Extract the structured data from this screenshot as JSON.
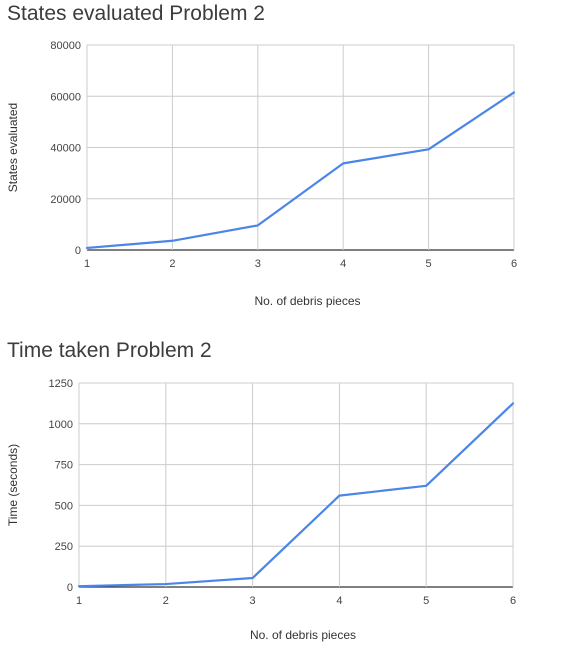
{
  "chart_data": [
    {
      "type": "line",
      "title": "States evaluated Problem 2",
      "xlabel": "No. of debris pieces",
      "ylabel": "States evaluated",
      "x": [
        1,
        2,
        3,
        4,
        5,
        6
      ],
      "x_ticks": [
        "1",
        "2",
        "3",
        "4",
        "5",
        "6"
      ],
      "y_ticks": [
        "0",
        "20000",
        "40000",
        "60000",
        "80000"
      ],
      "ylim": [
        0,
        80000
      ],
      "xlim": [
        1,
        6
      ],
      "grid": true,
      "legend": "none",
      "series": [
        {
          "values": [
            800,
            3600,
            9600,
            33800,
            39300,
            61500
          ],
          "color": "#4a86e8"
        }
      ]
    },
    {
      "type": "line",
      "title": "Time taken Problem 2",
      "xlabel": "No. of debris pieces",
      "ylabel": "Time (seconds)",
      "x": [
        1,
        2,
        3,
        4,
        5,
        6
      ],
      "x_ticks": [
        "1",
        "2",
        "3",
        "4",
        "5",
        "6"
      ],
      "y_ticks": [
        "0",
        "250",
        "500",
        "750",
        "1000",
        "1250"
      ],
      "ylim": [
        0,
        1250
      ],
      "xlim": [
        1,
        6
      ],
      "grid": true,
      "legend": "none",
      "series": [
        {
          "values": [
            5,
            18,
            55,
            560,
            620,
            1125
          ],
          "color": "#4a86e8"
        }
      ]
    }
  ]
}
